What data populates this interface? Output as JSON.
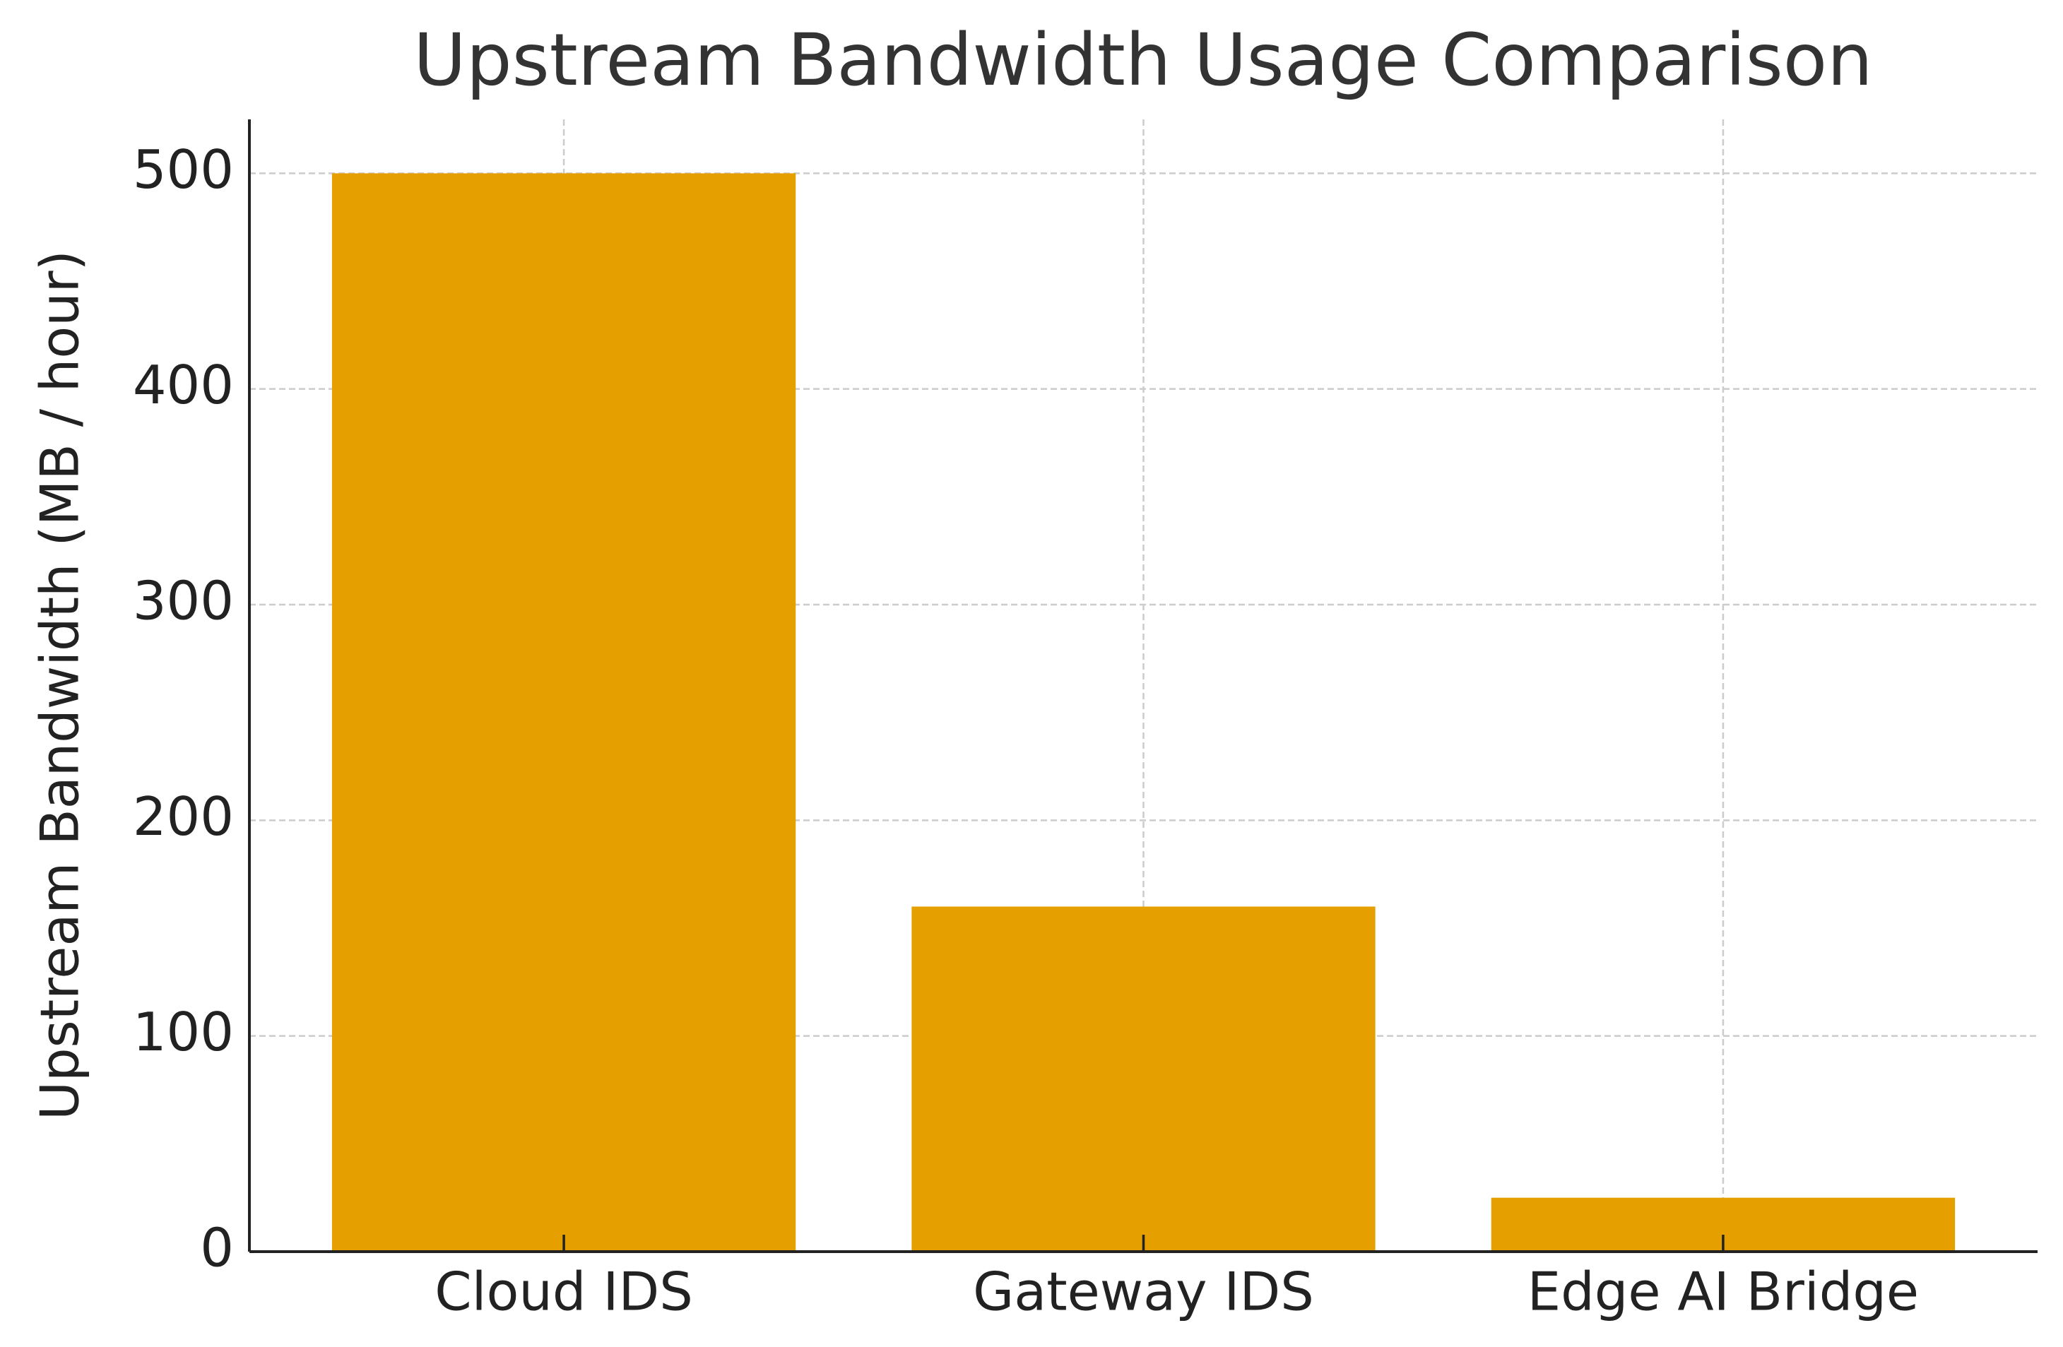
{
  "chart_data": {
    "type": "bar",
    "title": "Upstream Bandwidth Usage Comparison",
    "y_label": "Upstream Bandwidth (MB / hour)",
    "categories": [
      "Cloud IDS",
      "Gateway IDS",
      "Edge AI Bridge"
    ],
    "values": [
      500,
      160,
      25
    ],
    "color": "#e5a000",
    "ylim": [
      0,
      525
    ],
    "yticks": [
      0,
      100,
      200,
      300,
      400,
      500
    ],
    "grid": true
  }
}
